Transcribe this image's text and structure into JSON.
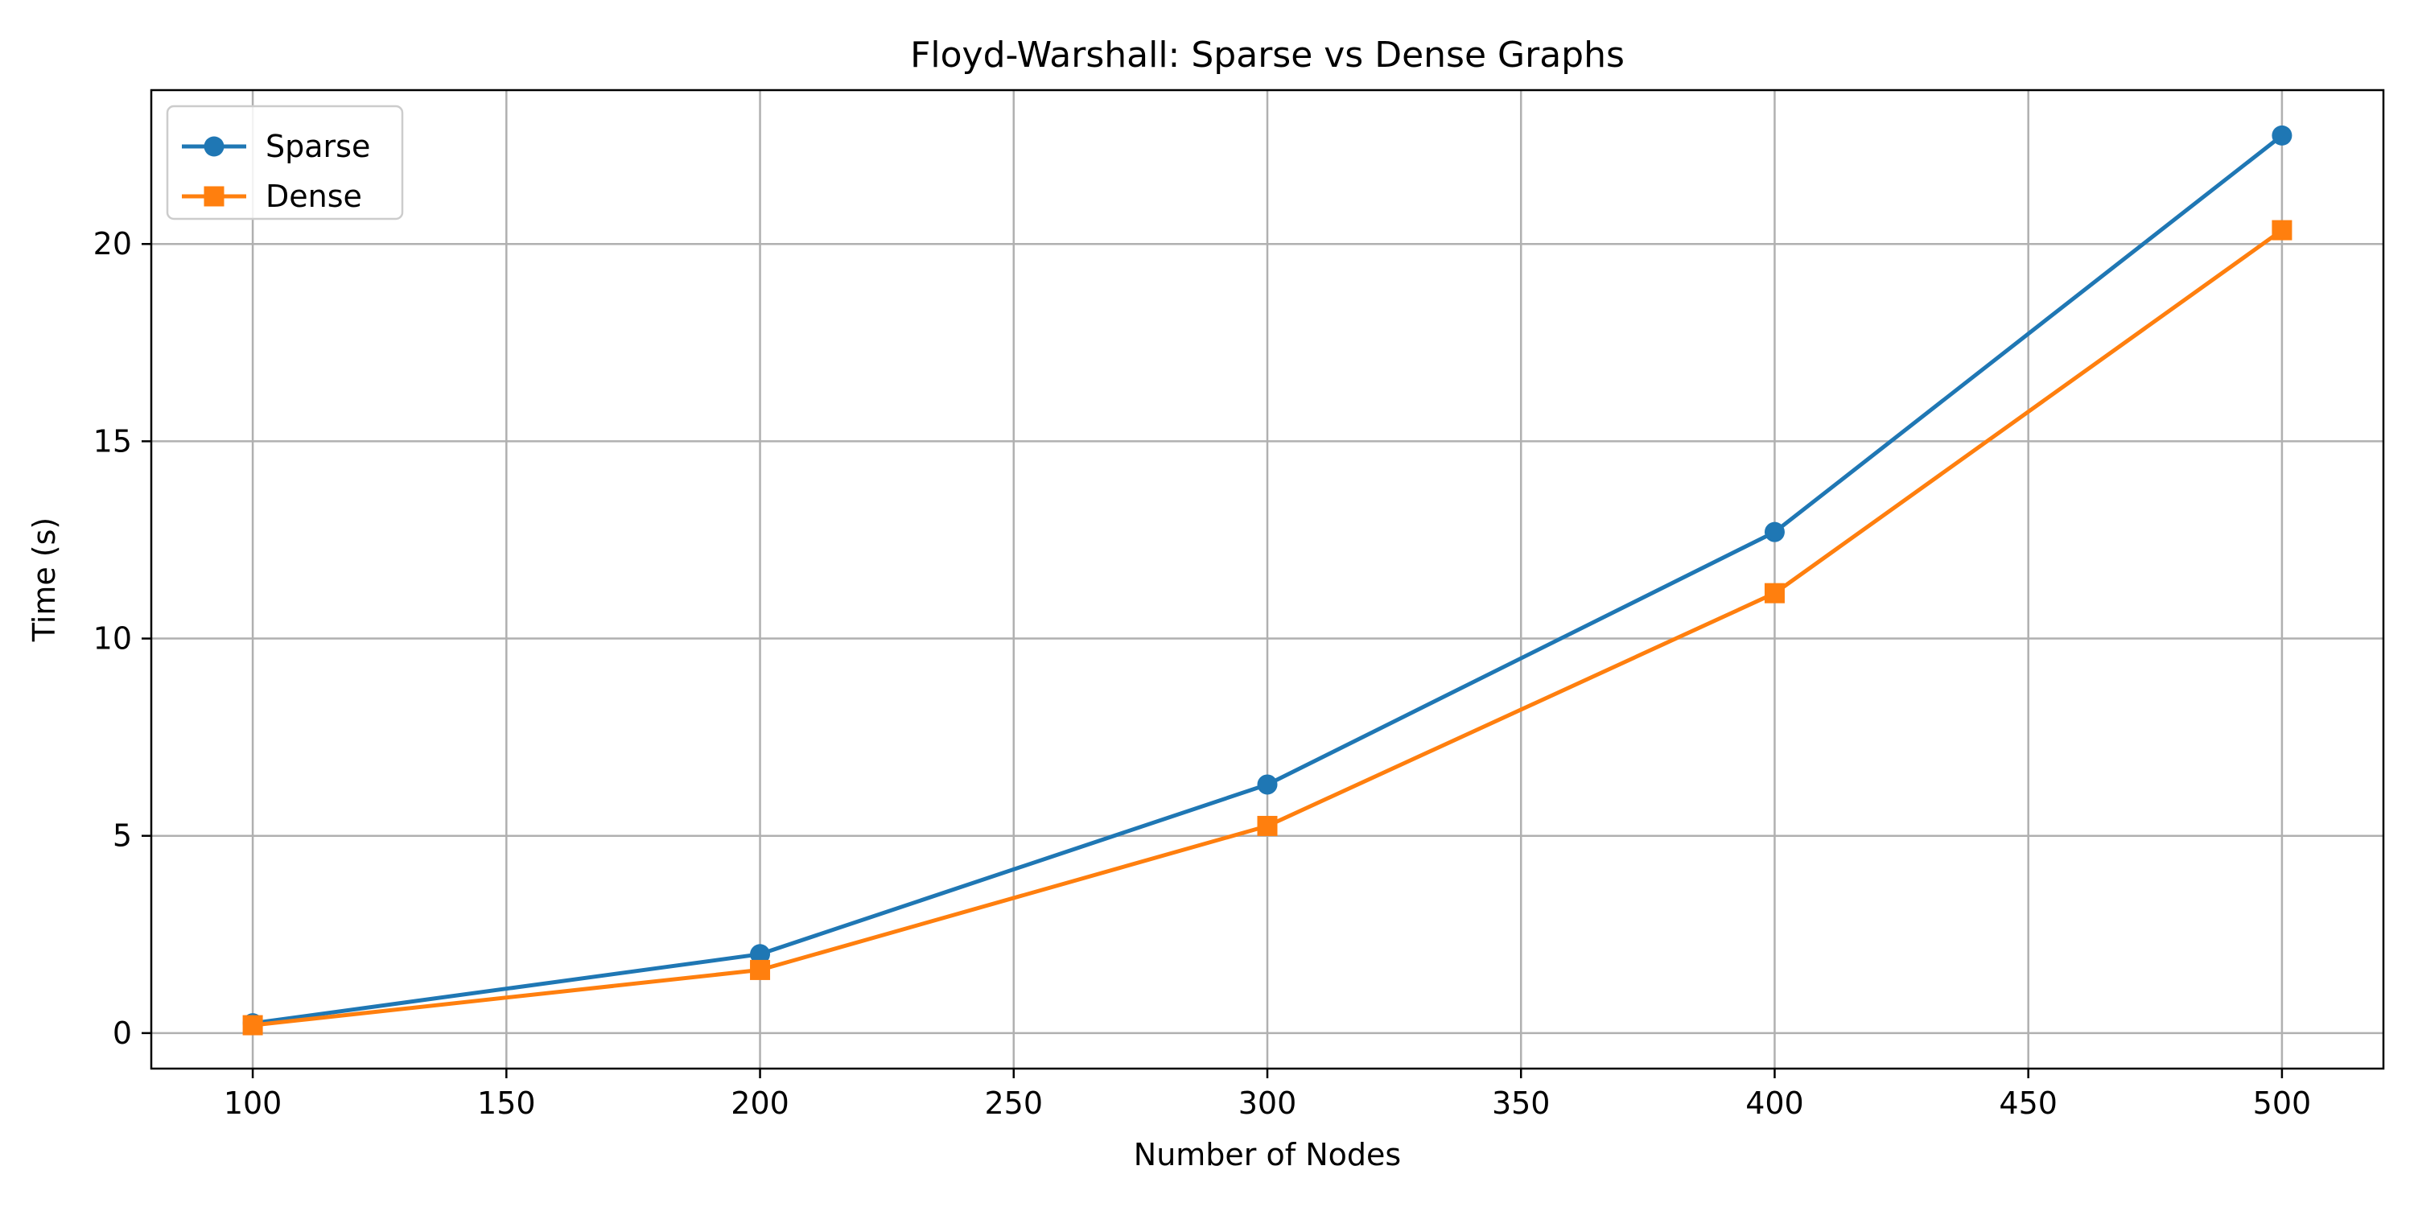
{
  "chart_data": {
    "type": "line",
    "title": "Floyd-Warshall: Sparse vs Dense Graphs",
    "xlabel": "Number of Nodes",
    "ylabel": "Time (s)",
    "xlim": [
      80,
      520
    ],
    "ylim": [
      -0.9,
      23.9
    ],
    "xticks": [
      100,
      150,
      200,
      250,
      300,
      350,
      400,
      450,
      500
    ],
    "yticks": [
      0,
      5,
      10,
      15,
      20
    ],
    "grid": true,
    "legend_position": "top-left",
    "x": [
      100,
      200,
      300,
      400,
      500
    ],
    "series": [
      {
        "name": "Sparse",
        "marker": "circle",
        "color": "#1f77b4",
        "values": [
          0.25,
          2.0,
          6.3,
          12.7,
          22.75
        ]
      },
      {
        "name": "Dense",
        "marker": "square",
        "color": "#ff7f0e",
        "values": [
          0.2,
          1.6,
          5.25,
          11.15,
          20.35
        ]
      }
    ]
  }
}
